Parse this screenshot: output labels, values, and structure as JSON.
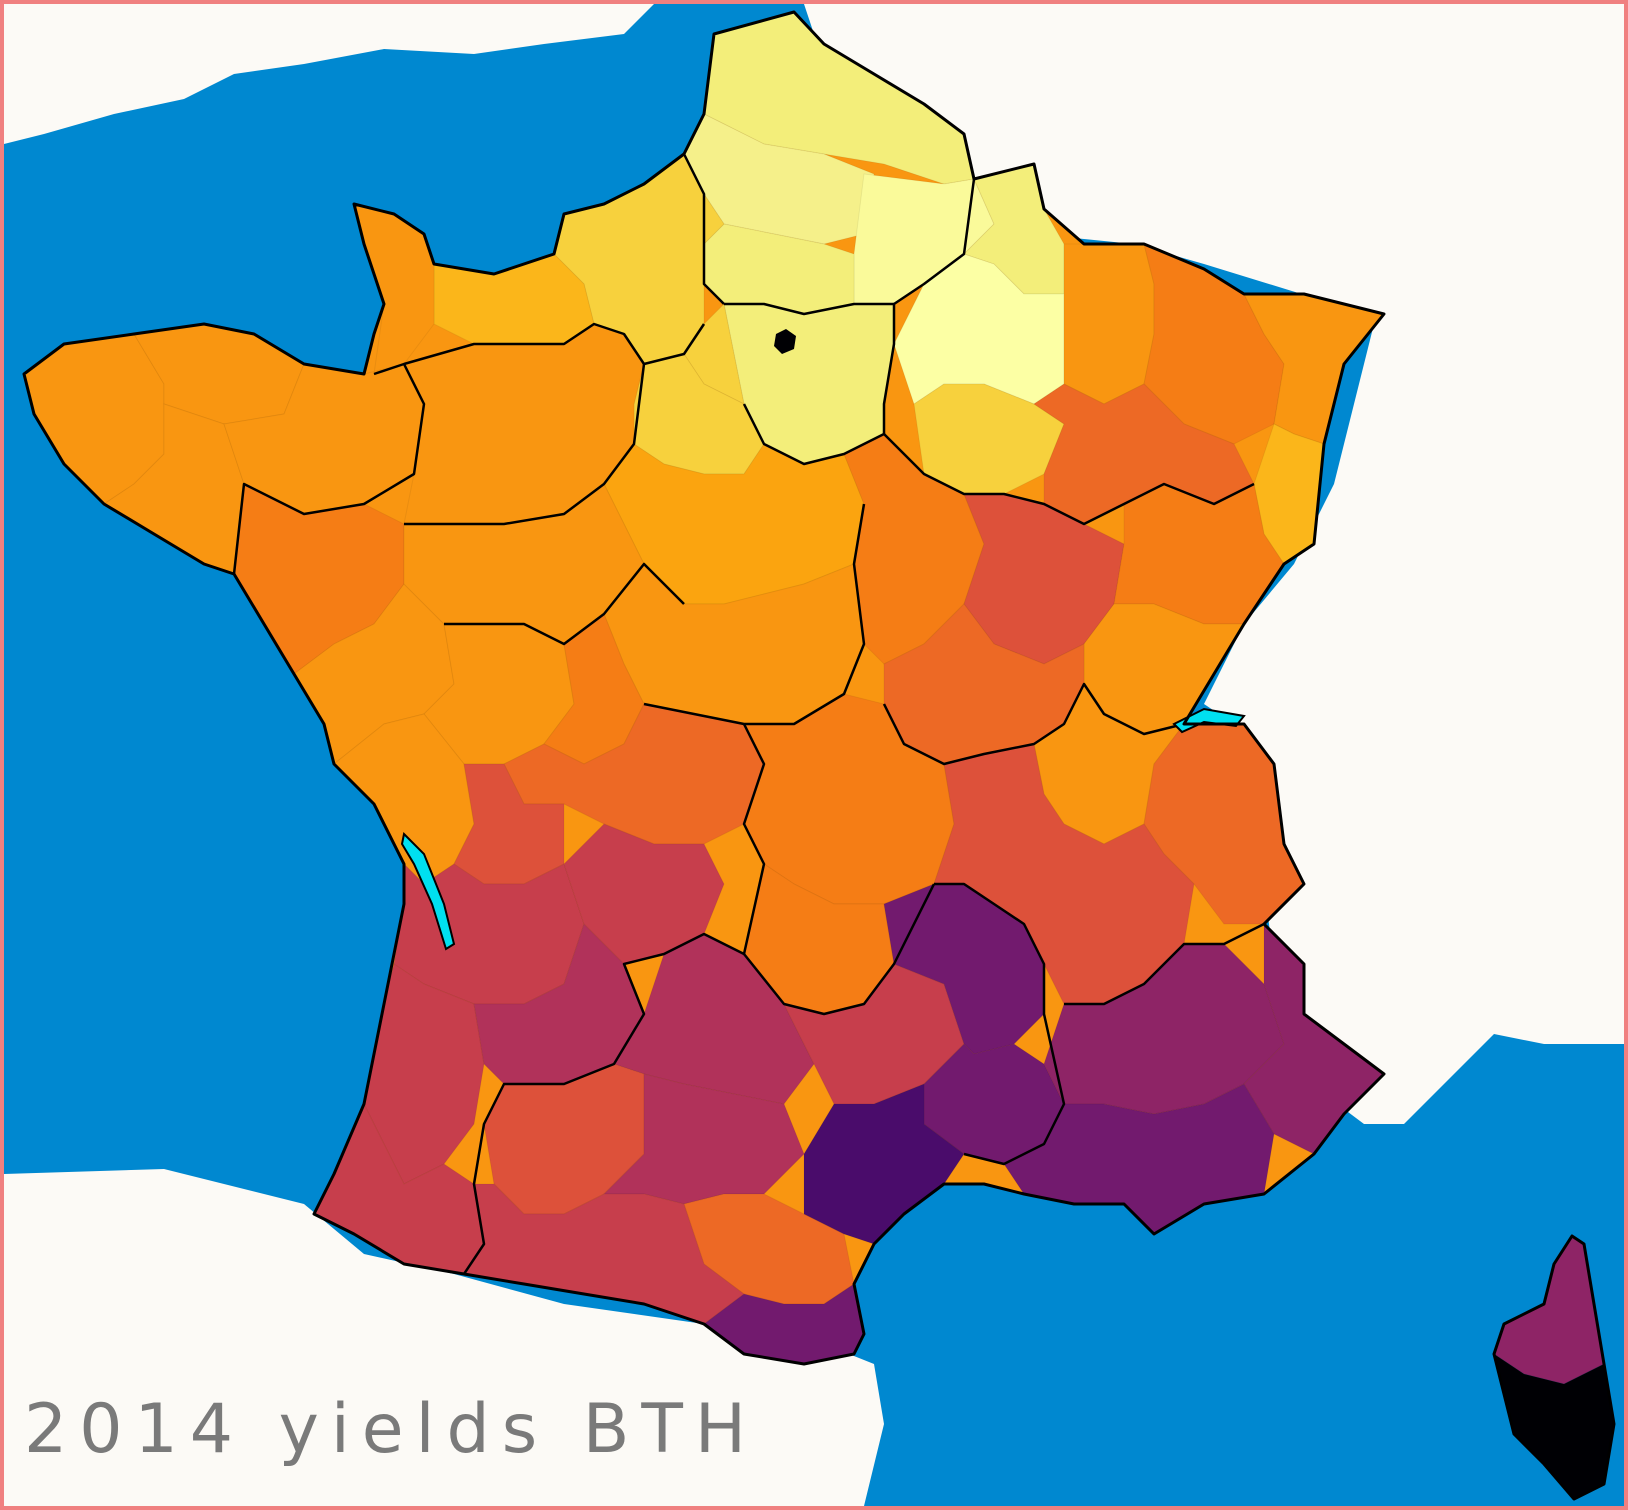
{
  "caption": "2014 yields BTH",
  "colors": {
    "sea": "#0088d0",
    "land_outside": "#fcfaf6",
    "frame_border": "#f08080",
    "border": "#000000",
    "lake": "#00e0f0",
    "scale": [
      "#fcffa4",
      "#f3ee7a",
      "#f7d13d",
      "#fbb61a",
      "#f99611",
      "#f57d15",
      "#ed6925",
      "#dd513a",
      "#c73e4c",
      "#b1325a",
      "#8e2466",
      "#721a6e",
      "#4a0c6b",
      "#000004"
    ]
  },
  "choropleth_levels": [
    {
      "name": "very-high-yield",
      "level": 0
    },
    {
      "name": "high-yield",
      "level": 2
    },
    {
      "name": "medium-high-yield",
      "level": 4
    },
    {
      "name": "medium-yield",
      "level": 6
    },
    {
      "name": "medium-low-yield",
      "level": 8
    },
    {
      "name": "low-yield",
      "level": 11
    },
    {
      "name": "very-low-yield",
      "level": 12
    },
    {
      "name": "no-data",
      "level": 13
    }
  ]
}
